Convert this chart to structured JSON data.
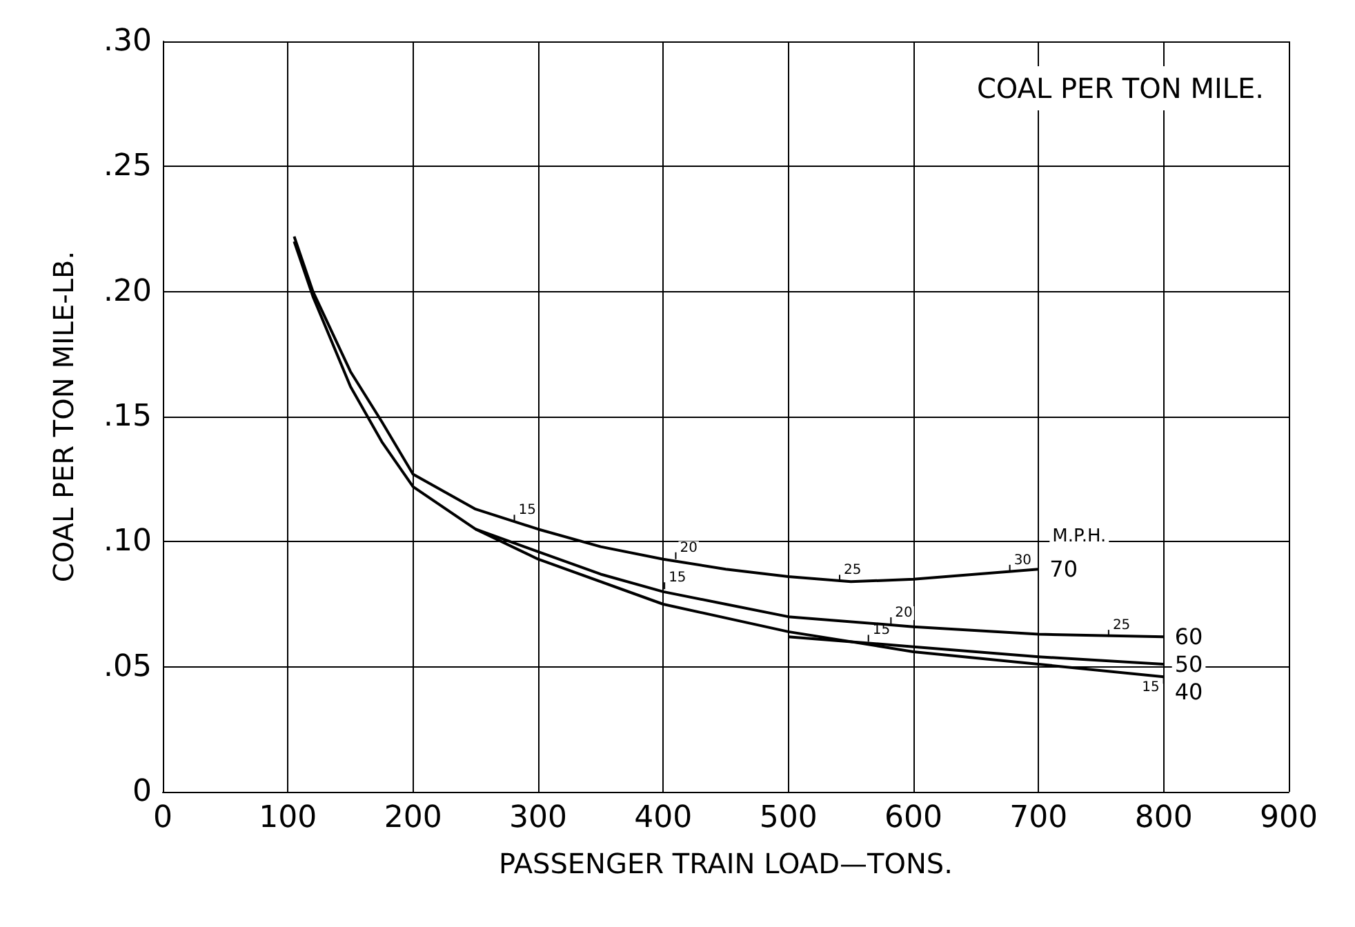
{
  "chart_data": {
    "type": "line",
    "title": "COAL PER TON MILE.",
    "xlabel": "PASSENGER TRAIN LOAD—TONS.",
    "ylabel": "COAL PER TON MILE-LB.",
    "legend_title": "M.P.H.",
    "xlim": [
      0,
      900
    ],
    "xticks": [
      0,
      100,
      200,
      300,
      400,
      500,
      600,
      700,
      800,
      900
    ],
    "ylim": [
      0,
      0.3
    ],
    "yticks": [
      0,
      {
        "value": 0.05,
        "label": ".05"
      },
      {
        "value": 0.1,
        "label": ".10"
      },
      {
        "value": 0.15,
        "label": ".15"
      },
      {
        "value": 0.2,
        "label": ".20"
      },
      {
        "value": 0.25,
        "label": ".25"
      },
      {
        "value": 0.3,
        "label": ".30"
      }
    ],
    "grid": true,
    "legend": "right",
    "marker": "none",
    "line_style": "solid",
    "series": [
      {
        "name": "70",
        "color": "#000000",
        "x": [
          105,
          120,
          150,
          175,
          200,
          250,
          300,
          350,
          400,
          450,
          500,
          550,
          600,
          650,
          700
        ],
        "values": [
          0.222,
          0.2,
          0.168,
          0.148,
          0.127,
          0.113,
          0.105,
          0.098,
          0.093,
          0.089,
          0.086,
          0.084,
          0.085,
          0.087,
          0.089
        ]
      },
      {
        "name": "60",
        "color": "#000000",
        "x": [
          105,
          120,
          150,
          175,
          200,
          250,
          300,
          350,
          400,
          450,
          500,
          600,
          700,
          800
        ],
        "values": [
          0.22,
          0.198,
          0.162,
          0.14,
          0.122,
          0.105,
          0.096,
          0.087,
          0.08,
          0.075,
          0.07,
          0.066,
          0.063,
          0.062
        ]
      },
      {
        "name": "50",
        "color": "#000000",
        "x": [
          500,
          600,
          700,
          800
        ],
        "values": [
          0.062,
          0.058,
          0.054,
          0.051
        ]
      },
      {
        "name": "40",
        "color": "#000000",
        "x": [
          250,
          300,
          400,
          500,
          600,
          700,
          800
        ],
        "values": [
          0.105,
          0.093,
          0.075,
          0.064,
          0.056,
          0.051,
          0.046
        ]
      }
    ],
    "annotations": [
      {
        "text": "15",
        "x": 281,
        "y": 0.108
      },
      {
        "text": "20",
        "x": 410,
        "y": 0.093
      },
      {
        "text": "25",
        "x": 541,
        "y": 0.084
      },
      {
        "text": "30",
        "x": 677,
        "y": 0.088
      },
      {
        "text": "15",
        "x": 401,
        "y": 0.081
      },
      {
        "text": "20",
        "x": 582,
        "y": 0.067
      },
      {
        "text": "25",
        "x": 756,
        "y": 0.062
      },
      {
        "text": "15",
        "x": 564,
        "y": 0.06
      },
      {
        "text": "15",
        "x": 800,
        "y": 0.046
      }
    ]
  }
}
